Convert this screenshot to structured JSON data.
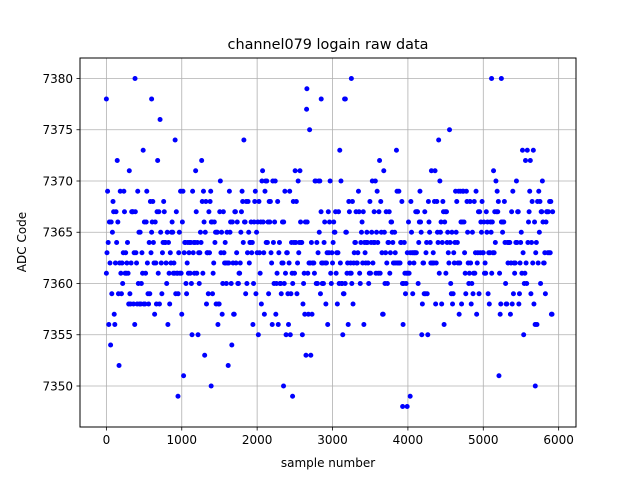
{
  "chart_data": {
    "type": "scatter",
    "title": "channel079 logain raw data",
    "xlabel": "sample number",
    "ylabel": "ADC Code",
    "xlim": [
      -350,
      6230
    ],
    "ylim": [
      7346,
      7382
    ],
    "xticks": [
      0,
      1000,
      2000,
      3000,
      4000,
      5000,
      6000
    ],
    "yticks": [
      7350,
      7355,
      7360,
      7365,
      7370,
      7375,
      7380
    ],
    "grid": true,
    "marker_color": "#0000ff",
    "x_range": [
      0,
      5925
    ],
    "code_distribution": [
      {
        "code": 7348,
        "weight": 0.0005
      },
      {
        "code": 7349,
        "weight": 0.0008
      },
      {
        "code": 7350,
        "weight": 0.0012
      },
      {
        "code": 7351,
        "weight": 0.002
      },
      {
        "code": 7352,
        "weight": 0.003
      },
      {
        "code": 7353,
        "weight": 0.005
      },
      {
        "code": 7354,
        "weight": 0.008
      },
      {
        "code": 7355,
        "weight": 0.013
      },
      {
        "code": 7356,
        "weight": 0.02
      },
      {
        "code": 7357,
        "weight": 0.03
      },
      {
        "code": 7358,
        "weight": 0.042
      },
      {
        "code": 7359,
        "weight": 0.056
      },
      {
        "code": 7360,
        "weight": 0.07
      },
      {
        "code": 7361,
        "weight": 0.083
      },
      {
        "code": 7362,
        "weight": 0.093
      },
      {
        "code": 7363,
        "weight": 0.098
      },
      {
        "code": 7364,
        "weight": 0.098
      },
      {
        "code": 7365,
        "weight": 0.093
      },
      {
        "code": 7366,
        "weight": 0.083
      },
      {
        "code": 7367,
        "weight": 0.07
      },
      {
        "code": 7368,
        "weight": 0.056
      },
      {
        "code": 7369,
        "weight": 0.042
      },
      {
        "code": 7370,
        "weight": 0.03
      },
      {
        "code": 7371,
        "weight": 0.02
      },
      {
        "code": 7372,
        "weight": 0.013
      },
      {
        "code": 7373,
        "weight": 0.008
      },
      {
        "code": 7374,
        "weight": 0.005
      },
      {
        "code": 7375,
        "weight": 0.003
      },
      {
        "code": 7376,
        "weight": 0.002
      },
      {
        "code": 7377,
        "weight": 0.0008
      },
      {
        "code": 7378,
        "weight": 0.0005
      }
    ],
    "outliers": [
      {
        "x": 0,
        "y": 7378
      },
      {
        "x": 380,
        "y": 7380
      },
      {
        "x": 600,
        "y": 7378
      },
      {
        "x": 950,
        "y": 7349
      },
      {
        "x": 1390,
        "y": 7350
      },
      {
        "x": 2350,
        "y": 7350
      },
      {
        "x": 2470,
        "y": 7349
      },
      {
        "x": 2660,
        "y": 7379
      },
      {
        "x": 2850,
        "y": 7378
      },
      {
        "x": 3250,
        "y": 7380
      },
      {
        "x": 3170,
        "y": 7378
      },
      {
        "x": 3930,
        "y": 7348
      },
      {
        "x": 3990,
        "y": 7348
      },
      {
        "x": 4030,
        "y": 7349
      },
      {
        "x": 5110,
        "y": 7380
      },
      {
        "x": 5240,
        "y": 7380
      },
      {
        "x": 5690,
        "y": 7350
      }
    ]
  }
}
